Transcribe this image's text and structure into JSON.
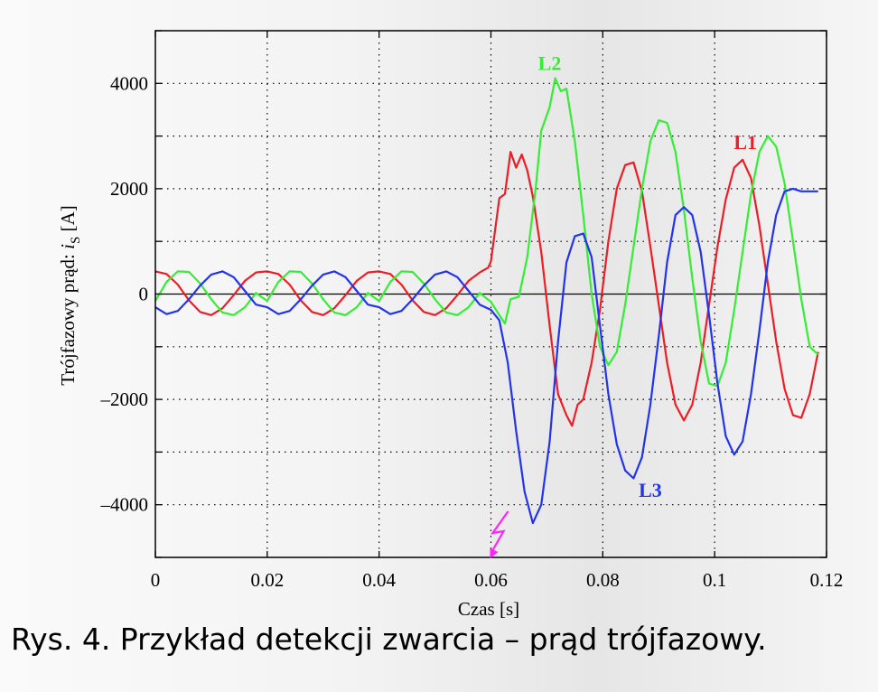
{
  "chart_data": {
    "type": "line",
    "title": "",
    "xlabel": "Czas [s]",
    "ylabel_main": "Trójfazowy prąd: ",
    "ylabel_italic": "i",
    "ylabel_sub": "S",
    "ylabel_unit": " [A]",
    "xlim": [
      0,
      0.12
    ],
    "ylim": [
      -5000,
      5000
    ],
    "grid": true,
    "grid_style": "dotted",
    "xticks": [
      {
        "value": 0,
        "label": "0"
      },
      {
        "value": 0.02,
        "label": "0.02"
      },
      {
        "value": 0.04,
        "label": "0.04"
      },
      {
        "value": 0.06,
        "label": "0.06"
      },
      {
        "value": 0.08,
        "label": "0.08"
      },
      {
        "value": 0.1,
        "label": "0.1"
      },
      {
        "value": 0.12,
        "label": "0.12"
      }
    ],
    "yticks": [
      {
        "value": 4000,
        "label": "4000"
      },
      {
        "value": 2000,
        "label": "2000"
      },
      {
        "value": 0,
        "label": "0"
      },
      {
        "value": -2000,
        "label": "–2000"
      },
      {
        "value": -4000,
        "label": "–4000"
      }
    ],
    "fault_time": 0.06,
    "series": [
      {
        "name": "L1",
        "color": "#ee1c25",
        "label_at": [
          0.1055,
          2750
        ],
        "points": [
          [
            0,
            430
          ],
          [
            0.002,
            380
          ],
          [
            0.004,
            180
          ],
          [
            0.006,
            -120
          ],
          [
            0.008,
            -340
          ],
          [
            0.01,
            -400
          ],
          [
            0.012,
            -270
          ],
          [
            0.014,
            -20
          ],
          [
            0.016,
            250
          ],
          [
            0.018,
            410
          ],
          [
            0.02,
            430
          ],
          [
            0.022,
            380
          ],
          [
            0.024,
            180
          ],
          [
            0.026,
            -120
          ],
          [
            0.028,
            -340
          ],
          [
            0.03,
            -400
          ],
          [
            0.032,
            -270
          ],
          [
            0.034,
            -20
          ],
          [
            0.036,
            250
          ],
          [
            0.038,
            410
          ],
          [
            0.04,
            430
          ],
          [
            0.042,
            380
          ],
          [
            0.044,
            180
          ],
          [
            0.046,
            -120
          ],
          [
            0.048,
            -340
          ],
          [
            0.05,
            -400
          ],
          [
            0.052,
            -270
          ],
          [
            0.054,
            -20
          ],
          [
            0.056,
            250
          ],
          [
            0.058,
            410
          ],
          [
            0.0595,
            500
          ],
          [
            0.06,
            620
          ],
          [
            0.0615,
            1820
          ],
          [
            0.0625,
            1900
          ],
          [
            0.0635,
            2700
          ],
          [
            0.0645,
            2400
          ],
          [
            0.0655,
            2650
          ],
          [
            0.0665,
            2350
          ],
          [
            0.0675,
            1850
          ],
          [
            0.069,
            800
          ],
          [
            0.0705,
            -600
          ],
          [
            0.072,
            -1900
          ],
          [
            0.0735,
            -2300
          ],
          [
            0.0745,
            -2500
          ],
          [
            0.0755,
            -2100
          ],
          [
            0.0765,
            -2000
          ],
          [
            0.078,
            -1300
          ],
          [
            0.0795,
            -300
          ],
          [
            0.081,
            1000
          ],
          [
            0.0825,
            2000
          ],
          [
            0.084,
            2450
          ],
          [
            0.0855,
            2500
          ],
          [
            0.087,
            1950
          ],
          [
            0.0885,
            900
          ],
          [
            0.09,
            -200
          ],
          [
            0.0915,
            -1300
          ],
          [
            0.093,
            -2100
          ],
          [
            0.0945,
            -2400
          ],
          [
            0.096,
            -2100
          ],
          [
            0.0975,
            -1300
          ],
          [
            0.099,
            -200
          ],
          [
            0.1005,
            900
          ],
          [
            0.102,
            1800
          ],
          [
            0.1035,
            2400
          ],
          [
            0.105,
            2550
          ],
          [
            0.1065,
            2200
          ],
          [
            0.108,
            1300
          ],
          [
            0.1095,
            200
          ],
          [
            0.111,
            -900
          ],
          [
            0.1125,
            -1800
          ],
          [
            0.114,
            -2300
          ],
          [
            0.1155,
            -2350
          ],
          [
            0.117,
            -1900
          ],
          [
            0.1185,
            -1100
          ]
        ]
      },
      {
        "name": "L2",
        "color": "#33ee33",
        "label_at": [
          0.0705,
          4250
        ],
        "points": [
          [
            0,
            -130
          ],
          [
            0.002,
            230
          ],
          [
            0.004,
            430
          ],
          [
            0.006,
            420
          ],
          [
            0.008,
            200
          ],
          [
            0.01,
            -100
          ],
          [
            0.012,
            -350
          ],
          [
            0.014,
            -400
          ],
          [
            0.016,
            -250
          ],
          [
            0.018,
            20
          ],
          [
            0.02,
            -130
          ],
          [
            0.022,
            230
          ],
          [
            0.024,
            430
          ],
          [
            0.026,
            420
          ],
          [
            0.028,
            200
          ],
          [
            0.03,
            -100
          ],
          [
            0.032,
            -350
          ],
          [
            0.034,
            -400
          ],
          [
            0.036,
            -250
          ],
          [
            0.038,
            20
          ],
          [
            0.04,
            -130
          ],
          [
            0.042,
            230
          ],
          [
            0.044,
            430
          ],
          [
            0.046,
            420
          ],
          [
            0.048,
            200
          ],
          [
            0.05,
            -100
          ],
          [
            0.052,
            -350
          ],
          [
            0.054,
            -400
          ],
          [
            0.056,
            -250
          ],
          [
            0.058,
            20
          ],
          [
            0.06,
            -150
          ],
          [
            0.0615,
            -400
          ],
          [
            0.0625,
            -560
          ],
          [
            0.0635,
            -100
          ],
          [
            0.065,
            -50
          ],
          [
            0.0665,
            700
          ],
          [
            0.068,
            2000
          ],
          [
            0.069,
            3100
          ],
          [
            0.0705,
            3550
          ],
          [
            0.0715,
            4100
          ],
          [
            0.0725,
            3850
          ],
          [
            0.0735,
            3900
          ],
          [
            0.075,
            2900
          ],
          [
            0.0765,
            1500
          ],
          [
            0.078,
            0
          ],
          [
            0.0795,
            -1000
          ],
          [
            0.081,
            -1350
          ],
          [
            0.0825,
            -1100
          ],
          [
            0.084,
            -200
          ],
          [
            0.0855,
            900
          ],
          [
            0.087,
            2000
          ],
          [
            0.0885,
            2900
          ],
          [
            0.09,
            3300
          ],
          [
            0.0915,
            3250
          ],
          [
            0.093,
            2700
          ],
          [
            0.0945,
            1600
          ],
          [
            0.096,
            300
          ],
          [
            0.0975,
            -900
          ],
          [
            0.099,
            -1700
          ],
          [
            0.1005,
            -1750
          ],
          [
            0.102,
            -1300
          ],
          [
            0.1035,
            -300
          ],
          [
            0.105,
            800
          ],
          [
            0.1065,
            1900
          ],
          [
            0.108,
            2700
          ],
          [
            0.1095,
            3000
          ],
          [
            0.111,
            2800
          ],
          [
            0.1125,
            2100
          ],
          [
            0.114,
            1000
          ],
          [
            0.1155,
            -100
          ],
          [
            0.117,
            -1000
          ],
          [
            0.1185,
            -1150
          ]
        ]
      },
      {
        "name": "L3",
        "color": "#2233ee",
        "label_at": [
          0.0885,
          -3850
        ],
        "points": [
          [
            0,
            -250
          ],
          [
            0.002,
            -380
          ],
          [
            0.004,
            -320
          ],
          [
            0.006,
            -100
          ],
          [
            0.008,
            160
          ],
          [
            0.01,
            370
          ],
          [
            0.012,
            430
          ],
          [
            0.014,
            320
          ],
          [
            0.016,
            60
          ],
          [
            0.018,
            -200
          ],
          [
            0.02,
            -250
          ],
          [
            0.022,
            -380
          ],
          [
            0.024,
            -320
          ],
          [
            0.026,
            -100
          ],
          [
            0.028,
            160
          ],
          [
            0.03,
            370
          ],
          [
            0.032,
            430
          ],
          [
            0.034,
            320
          ],
          [
            0.036,
            60
          ],
          [
            0.038,
            -200
          ],
          [
            0.04,
            -250
          ],
          [
            0.042,
            -380
          ],
          [
            0.044,
            -320
          ],
          [
            0.046,
            -100
          ],
          [
            0.048,
            160
          ],
          [
            0.05,
            370
          ],
          [
            0.052,
            430
          ],
          [
            0.054,
            320
          ],
          [
            0.056,
            60
          ],
          [
            0.058,
            -200
          ],
          [
            0.06,
            -300
          ],
          [
            0.0615,
            -500
          ],
          [
            0.063,
            -1300
          ],
          [
            0.0645,
            -2600
          ],
          [
            0.066,
            -3750
          ],
          [
            0.0675,
            -4350
          ],
          [
            0.069,
            -4000
          ],
          [
            0.0705,
            -2800
          ],
          [
            0.072,
            -900
          ],
          [
            0.0735,
            600
          ],
          [
            0.075,
            1100
          ],
          [
            0.0765,
            1150
          ],
          [
            0.078,
            700
          ],
          [
            0.0795,
            -600
          ],
          [
            0.081,
            -1900
          ],
          [
            0.0825,
            -2850
          ],
          [
            0.084,
            -3350
          ],
          [
            0.0855,
            -3500
          ],
          [
            0.087,
            -3100
          ],
          [
            0.0885,
            -2100
          ],
          [
            0.09,
            -800
          ],
          [
            0.0915,
            600
          ],
          [
            0.093,
            1500
          ],
          [
            0.0945,
            1650
          ],
          [
            0.096,
            1500
          ],
          [
            0.0975,
            800
          ],
          [
            0.099,
            -400
          ],
          [
            0.1005,
            -1700
          ],
          [
            0.102,
            -2700
          ],
          [
            0.1035,
            -3050
          ],
          [
            0.105,
            -2800
          ],
          [
            0.1065,
            -1900
          ],
          [
            0.108,
            -700
          ],
          [
            0.1095,
            600
          ],
          [
            0.111,
            1500
          ],
          [
            0.1125,
            1950
          ],
          [
            0.114,
            2000
          ],
          [
            0.1155,
            1950
          ],
          [
            0.117,
            1950
          ],
          [
            0.1185,
            1950
          ]
        ]
      }
    ]
  },
  "caption": "Rys. 4. Przykład detekcji zwarcia – prąd trójfazowy."
}
